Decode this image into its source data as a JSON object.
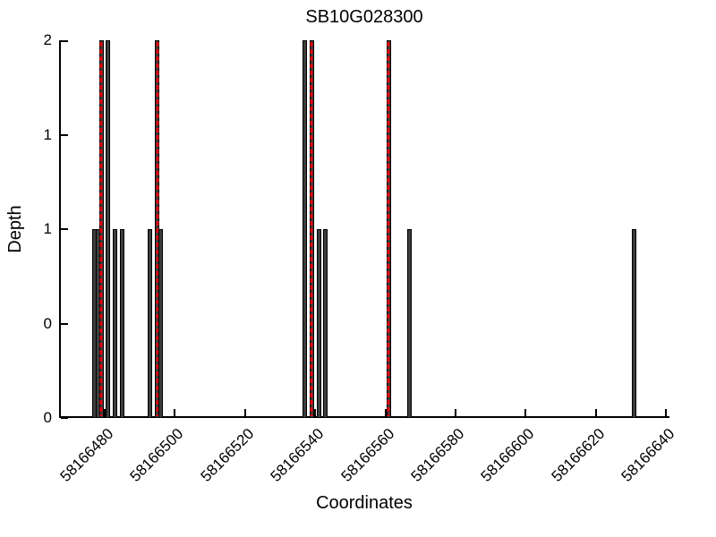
{
  "figure": {
    "background": "#ffffff"
  },
  "chart_data": {
    "type": "bar",
    "title": "SB10G028300",
    "xlabel": "Coordinates",
    "ylabel": "Depth",
    "xlim": [
      58166467,
      58166641
    ],
    "ylim": [
      0,
      2
    ],
    "grid": false,
    "legend": null,
    "x_ticks": [
      {
        "value": 58166480,
        "label": "58166480"
      },
      {
        "value": 58166500,
        "label": "58166500"
      },
      {
        "value": 58166520,
        "label": "58166520"
      },
      {
        "value": 58166540,
        "label": "58166540"
      },
      {
        "value": 58166560,
        "label": "58166560"
      },
      {
        "value": 58166580,
        "label": "58166580"
      },
      {
        "value": 58166600,
        "label": "58166600"
      },
      {
        "value": 58166620,
        "label": "58166620"
      },
      {
        "value": 58166640,
        "label": "58166640"
      }
    ],
    "y_ticks": [
      {
        "value": 2,
        "label": "2"
      },
      {
        "value": 1.5,
        "label": "1"
      },
      {
        "value": 1,
        "label": "1"
      },
      {
        "value": 0.5,
        "label": "0"
      },
      {
        "value": 0,
        "label": "0"
      }
    ],
    "bars": [
      {
        "coordinate": 58166477,
        "depth": 1,
        "variant": false
      },
      {
        "coordinate": 58166478,
        "depth": 1,
        "variant": false
      },
      {
        "coordinate": 58166479,
        "depth": 2,
        "variant": true
      },
      {
        "coordinate": 58166481,
        "depth": 2,
        "variant": false
      },
      {
        "coordinate": 58166483,
        "depth": 1,
        "variant": false
      },
      {
        "coordinate": 58166485,
        "depth": 1,
        "variant": false
      },
      {
        "coordinate": 58166493,
        "depth": 1,
        "variant": false
      },
      {
        "coordinate": 58166495,
        "depth": 2,
        "variant": true
      },
      {
        "coordinate": 58166496,
        "depth": 1,
        "variant": false
      },
      {
        "coordinate": 58166537,
        "depth": 2,
        "variant": false
      },
      {
        "coordinate": 58166539,
        "depth": 2,
        "variant": true
      },
      {
        "coordinate": 58166541,
        "depth": 1,
        "variant": false
      },
      {
        "coordinate": 58166543,
        "depth": 1,
        "variant": false
      },
      {
        "coordinate": 58166561,
        "depth": 2,
        "variant": true
      },
      {
        "coordinate": 58166567,
        "depth": 1,
        "variant": false
      },
      {
        "coordinate": 58166631,
        "depth": 1,
        "variant": false
      }
    ],
    "variant_positions": [
      58166479,
      58166495,
      58166539,
      58166561
    ],
    "colors": {
      "bar_fill": "#3d3d3d",
      "bar_border": "#000000",
      "variant_dash": "#e8000b",
      "axis": "#000000",
      "text": "#000000"
    }
  }
}
